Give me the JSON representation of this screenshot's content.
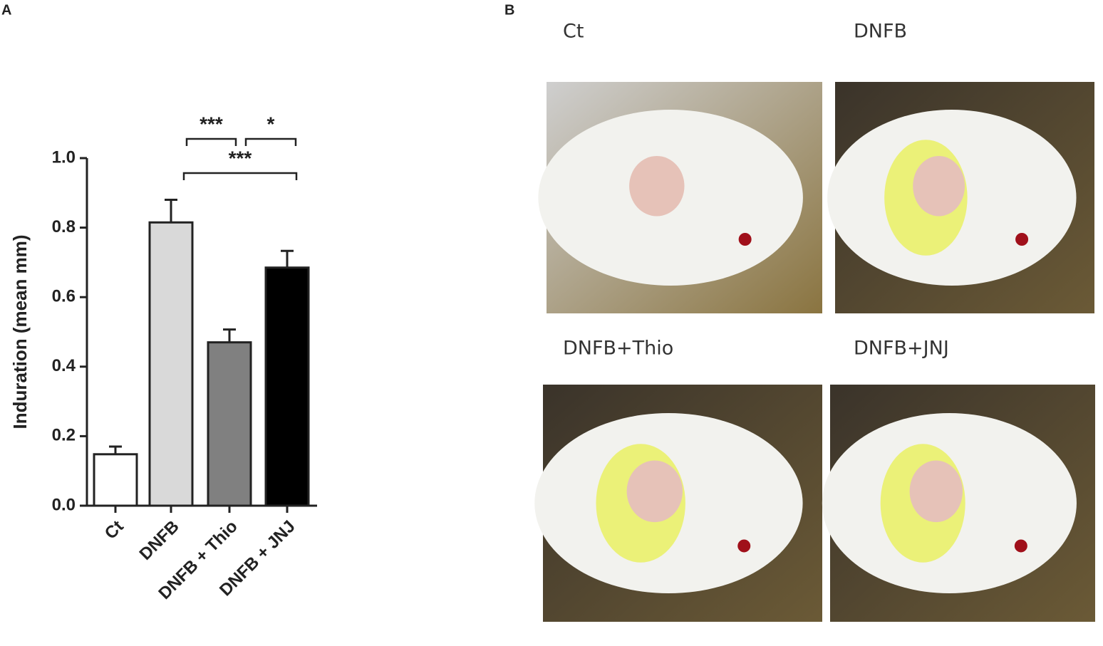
{
  "chart_data": {
    "type": "bar",
    "ylabel": "Induration (mean mm)",
    "categories": [
      "Ct",
      "DNFB",
      "DNFB + Thio",
      "DNFB + JNJ"
    ],
    "values": [
      0.148,
      0.815,
      0.47,
      0.685
    ],
    "errors": [
      0.022,
      0.065,
      0.037,
      0.048
    ],
    "colors": [
      "#ffffff",
      "#d9d9d9",
      "#808080",
      "#000000"
    ],
    "ylim": [
      0,
      1
    ],
    "yticks": [
      {
        "value": 0,
        "label": "0.0"
      },
      0.2,
      0.4,
      0.6,
      0.8,
      {
        "value": 1,
        "label": "1.0"
      }
    ],
    "annotations": [
      "***",
      "*",
      "***"
    ]
  },
  "panels": {
    "a_label": "A",
    "b_label": "B",
    "photos": [
      "Ct",
      "DNFB",
      "DNFB+Thio",
      "DNFB+JNJ"
    ]
  }
}
